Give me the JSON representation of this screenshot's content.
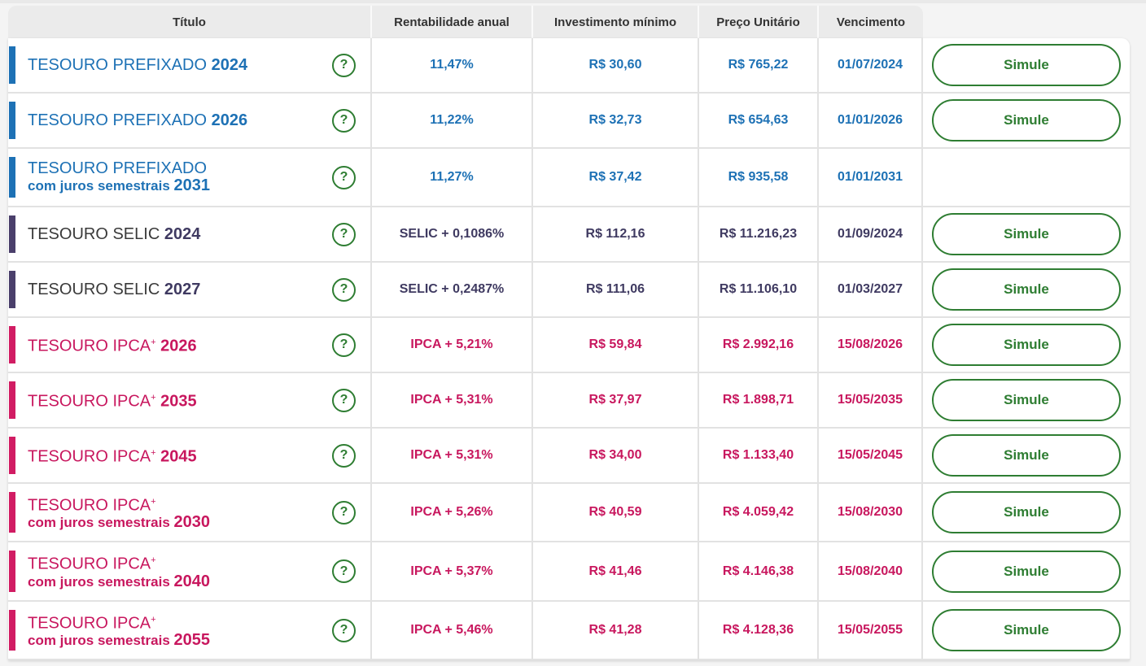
{
  "headers": {
    "titulo": "Título",
    "rentabilidade": "Rentabilidade anual",
    "investimento": "Investimento mínimo",
    "preco": "Preço Unitário",
    "vencimento": "Vencimento"
  },
  "help_label": "?",
  "simulate_label": "Simule",
  "colors": {
    "prefixado": "#1d71b5",
    "selic": "#4a3f6b",
    "ipca": "#d11c63",
    "button": "#2e7d32"
  },
  "rows": [
    {
      "name": "TESOURO PREFIXADO",
      "sup": "",
      "sub": "",
      "year": "2024",
      "rate": "11,47%",
      "min": "R$ 30,60",
      "price": "R$ 765,22",
      "date": "01/07/2024",
      "family": "blue",
      "simule": true
    },
    {
      "name": "TESOURO PREFIXADO",
      "sup": "",
      "sub": "",
      "year": "2026",
      "rate": "11,22%",
      "min": "R$ 32,73",
      "price": "R$ 654,63",
      "date": "01/01/2026",
      "family": "blue",
      "simule": true
    },
    {
      "name": "TESOURO PREFIXADO",
      "sup": "",
      "sub": "com juros semestrais",
      "year": "2031",
      "rate": "11,27%",
      "min": "R$ 37,42",
      "price": "R$ 935,58",
      "date": "01/01/2031",
      "family": "blue",
      "simule": false
    },
    {
      "name": "TESOURO SELIC",
      "sup": "",
      "sub": "",
      "year": "2024",
      "rate": "SELIC + 0,1086%",
      "min": "R$ 112,16",
      "price": "R$ 11.216,23",
      "date": "01/09/2024",
      "family": "purple",
      "simule": true
    },
    {
      "name": "TESOURO SELIC",
      "sup": "",
      "sub": "",
      "year": "2027",
      "rate": "SELIC + 0,2487%",
      "min": "R$ 111,06",
      "price": "R$ 11.106,10",
      "date": "01/03/2027",
      "family": "purple",
      "simule": true
    },
    {
      "name": "TESOURO IPCA",
      "sup": "+",
      "sub": "",
      "year": "2026",
      "rate": "IPCA + 5,21%",
      "min": "R$ 59,84",
      "price": "R$ 2.992,16",
      "date": "15/08/2026",
      "family": "pink",
      "simule": true
    },
    {
      "name": "TESOURO IPCA",
      "sup": "+",
      "sub": "",
      "year": "2035",
      "rate": "IPCA + 5,31%",
      "min": "R$ 37,97",
      "price": "R$ 1.898,71",
      "date": "15/05/2035",
      "family": "pink",
      "simule": true
    },
    {
      "name": "TESOURO IPCA",
      "sup": "+",
      "sub": "",
      "year": "2045",
      "rate": "IPCA + 5,31%",
      "min": "R$ 34,00",
      "price": "R$ 1.133,40",
      "date": "15/05/2045",
      "family": "pink",
      "simule": true
    },
    {
      "name": "TESOURO IPCA",
      "sup": "+",
      "sub": "com juros semestrais",
      "year": "2030",
      "rate": "IPCA + 5,26%",
      "min": "R$ 40,59",
      "price": "R$ 4.059,42",
      "date": "15/08/2030",
      "family": "pink",
      "simule": true
    },
    {
      "name": "TESOURO IPCA",
      "sup": "+",
      "sub": "com juros semestrais",
      "year": "2040",
      "rate": "IPCA + 5,37%",
      "min": "R$ 41,46",
      "price": "R$ 4.146,38",
      "date": "15/08/2040",
      "family": "pink",
      "simule": true
    },
    {
      "name": "TESOURO IPCA",
      "sup": "+",
      "sub": "com juros semestrais",
      "year": "2055",
      "rate": "IPCA + 5,46%",
      "min": "R$ 41,28",
      "price": "R$ 4.128,36",
      "date": "15/05/2055",
      "family": "pink",
      "simule": true
    }
  ]
}
